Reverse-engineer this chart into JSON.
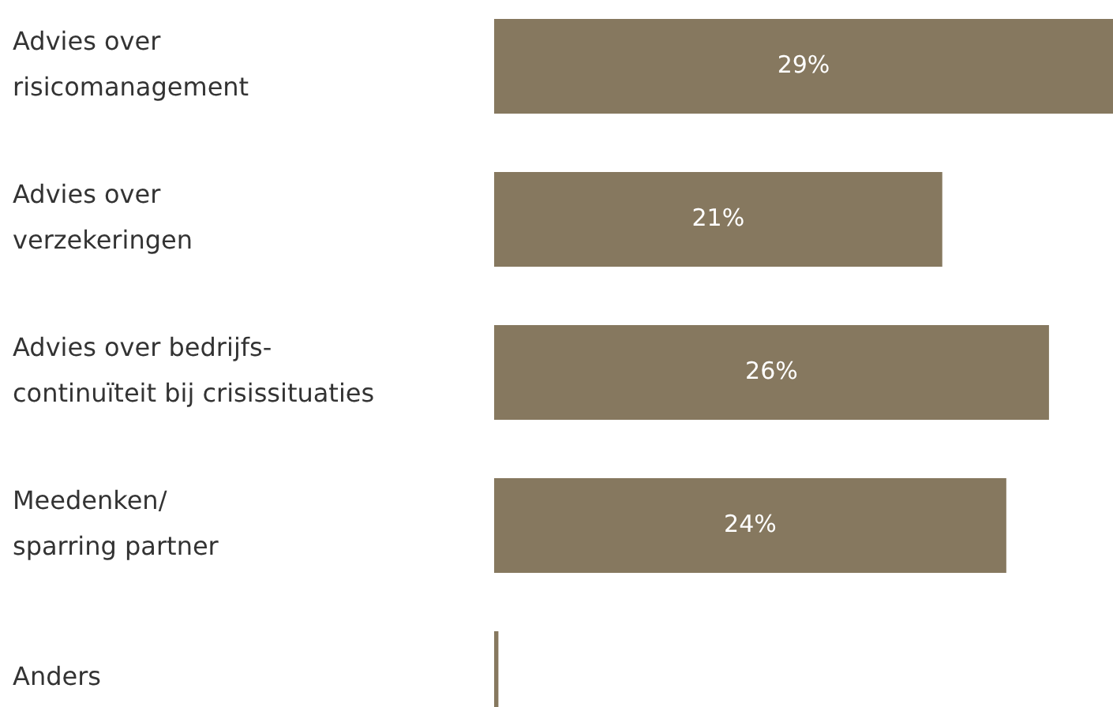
{
  "chart_data": {
    "type": "bar",
    "orientation": "horizontal",
    "categories": [
      "Advies over\nrisicomanagement",
      "Advies over\nverzekeringen",
      "Advies over bedrijfs-\ncontinuïteit bij crisissituaties",
      "Meedenken/\nsparring partner",
      "Anders"
    ],
    "values": [
      29,
      21,
      26,
      24,
      0.2
    ],
    "value_labels": [
      "29%",
      "21%",
      "26%",
      "24%",
      null
    ],
    "color": "#86785f"
  }
}
